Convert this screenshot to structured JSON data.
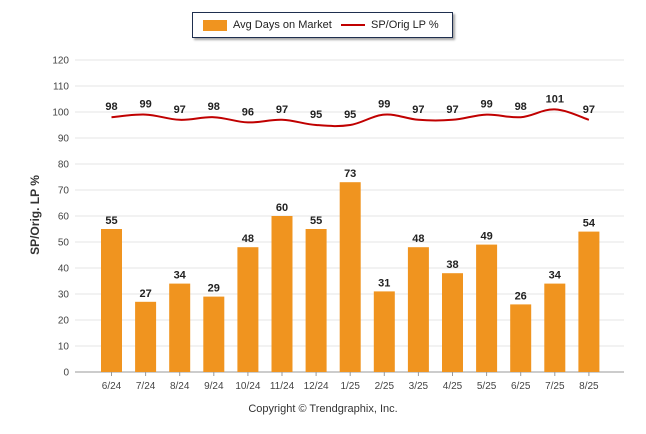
{
  "chart_data": {
    "type": "bar",
    "categories": [
      "6/24",
      "7/24",
      "8/24",
      "9/24",
      "10/24",
      "11/24",
      "12/24",
      "1/25",
      "2/25",
      "3/25",
      "4/25",
      "5/25",
      "6/25",
      "7/25",
      "8/25"
    ],
    "series": [
      {
        "name": "Avg Days on Market",
        "type": "bar",
        "color": "#f0941f",
        "values": [
          55,
          27,
          34,
          29,
          48,
          60,
          55,
          73,
          31,
          48,
          38,
          49,
          26,
          34,
          54
        ]
      },
      {
        "name": "SP/Orig LP %",
        "type": "line",
        "color": "#c00000",
        "values": [
          98,
          99,
          97,
          98,
          96,
          97,
          95,
          95,
          99,
          97,
          97,
          99,
          98,
          101,
          97
        ]
      }
    ],
    "ylabel": "SP/Orig. LP %",
    "ylim": [
      0,
      120
    ],
    "yticks": [
      0,
      10,
      20,
      30,
      40,
      50,
      60,
      70,
      80,
      90,
      100,
      110,
      120
    ],
    "grid": true,
    "legend_position": "top-center"
  },
  "legend": {
    "bar_label": "Avg Days on Market",
    "line_label": "SP/Orig LP %"
  },
  "footer": {
    "copyright": "Copyright © Trendgraphix, Inc."
  }
}
